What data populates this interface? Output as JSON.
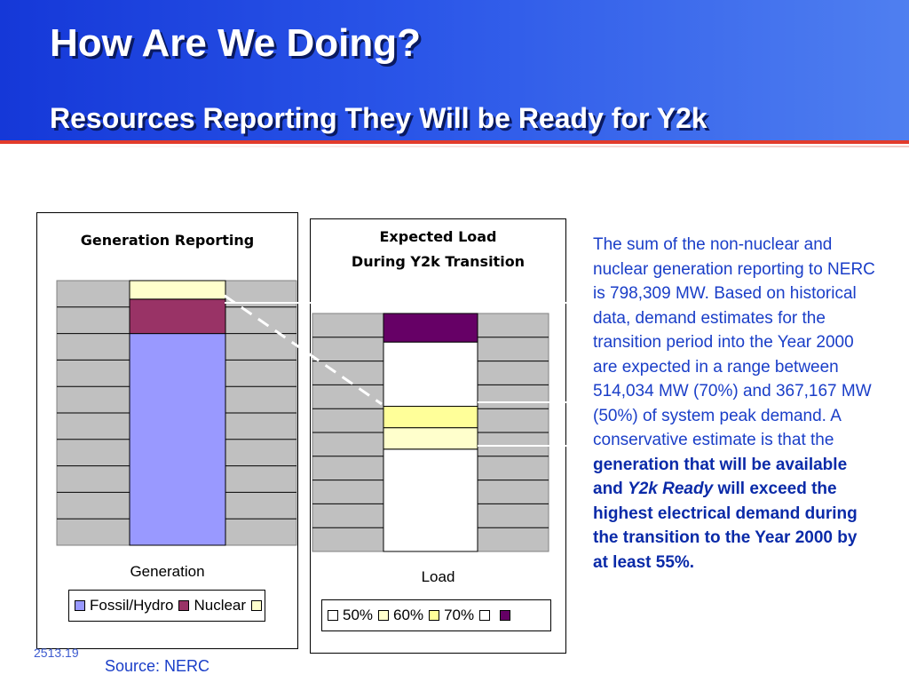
{
  "slide": {
    "title": "How Are We Doing?",
    "subtitle": "Resources Reporting They Will be Ready for Y2k",
    "description_plain": "The sum of the non-nuclear and nuclear generation reporting to NERC is 798,309 MW.  Based on historical data, demand estimates for the transition period into the Year 2000 are expected in a range between 514,034 MW (70%) and 367,167 MW (50%) of system peak demand.  A conservative estimate is that the",
    "description_bold_1": "generation that will be available and",
    "description_bold_italic": "Y2k Ready",
    "description_bold_2": "will exceed the highest electrical demand during the transition to the Year 2000 by at least 55%.",
    "footer_code": "2513.19",
    "source": "Source: NERC"
  },
  "colors": {
    "header_blue": "#1538d8",
    "accent_red": "#e23b2b",
    "text_blue": "#1a3ec8",
    "fossil_hydro": "#9999ff",
    "nuclear": "#993366",
    "pale_yellow": "#ffffcc",
    "yellow": "#ffff99",
    "purple": "#660066",
    "plot_gray": "#c0c0c0"
  },
  "chart_data": [
    {
      "type": "bar",
      "stacked": true,
      "title": "Generation Reporting",
      "categories": [
        "Generation"
      ],
      "ylim": [
        0,
        100
      ],
      "grid": true,
      "legend_position": "bottom",
      "series": [
        {
          "name": "Fossil/Hydro",
          "values": [
            80
          ],
          "color": "#9999ff"
        },
        {
          "name": "Nuclear",
          "values": [
            13
          ],
          "color": "#993366"
        },
        {
          "name": "",
          "values": [
            7
          ],
          "color": "#ffffcc"
        }
      ]
    },
    {
      "type": "bar",
      "stacked": true,
      "title": "Expected Load",
      "subtitle": "During Y2k Transition",
      "categories": [
        "Load"
      ],
      "ylim": [
        0,
        100
      ],
      "grid": true,
      "legend_position": "bottom",
      "series": [
        {
          "name": "50%",
          "values": [
            43
          ],
          "color": "#ffffff"
        },
        {
          "name": "60%",
          "values": [
            9
          ],
          "color": "#ffffcc"
        },
        {
          "name": "70%",
          "values": [
            9
          ],
          "color": "#ffff99"
        },
        {
          "name": "",
          "values": [
            27
          ],
          "color": "#ffffff"
        },
        {
          "name": "",
          "values": [
            12
          ],
          "color": "#660066"
        }
      ]
    }
  ]
}
